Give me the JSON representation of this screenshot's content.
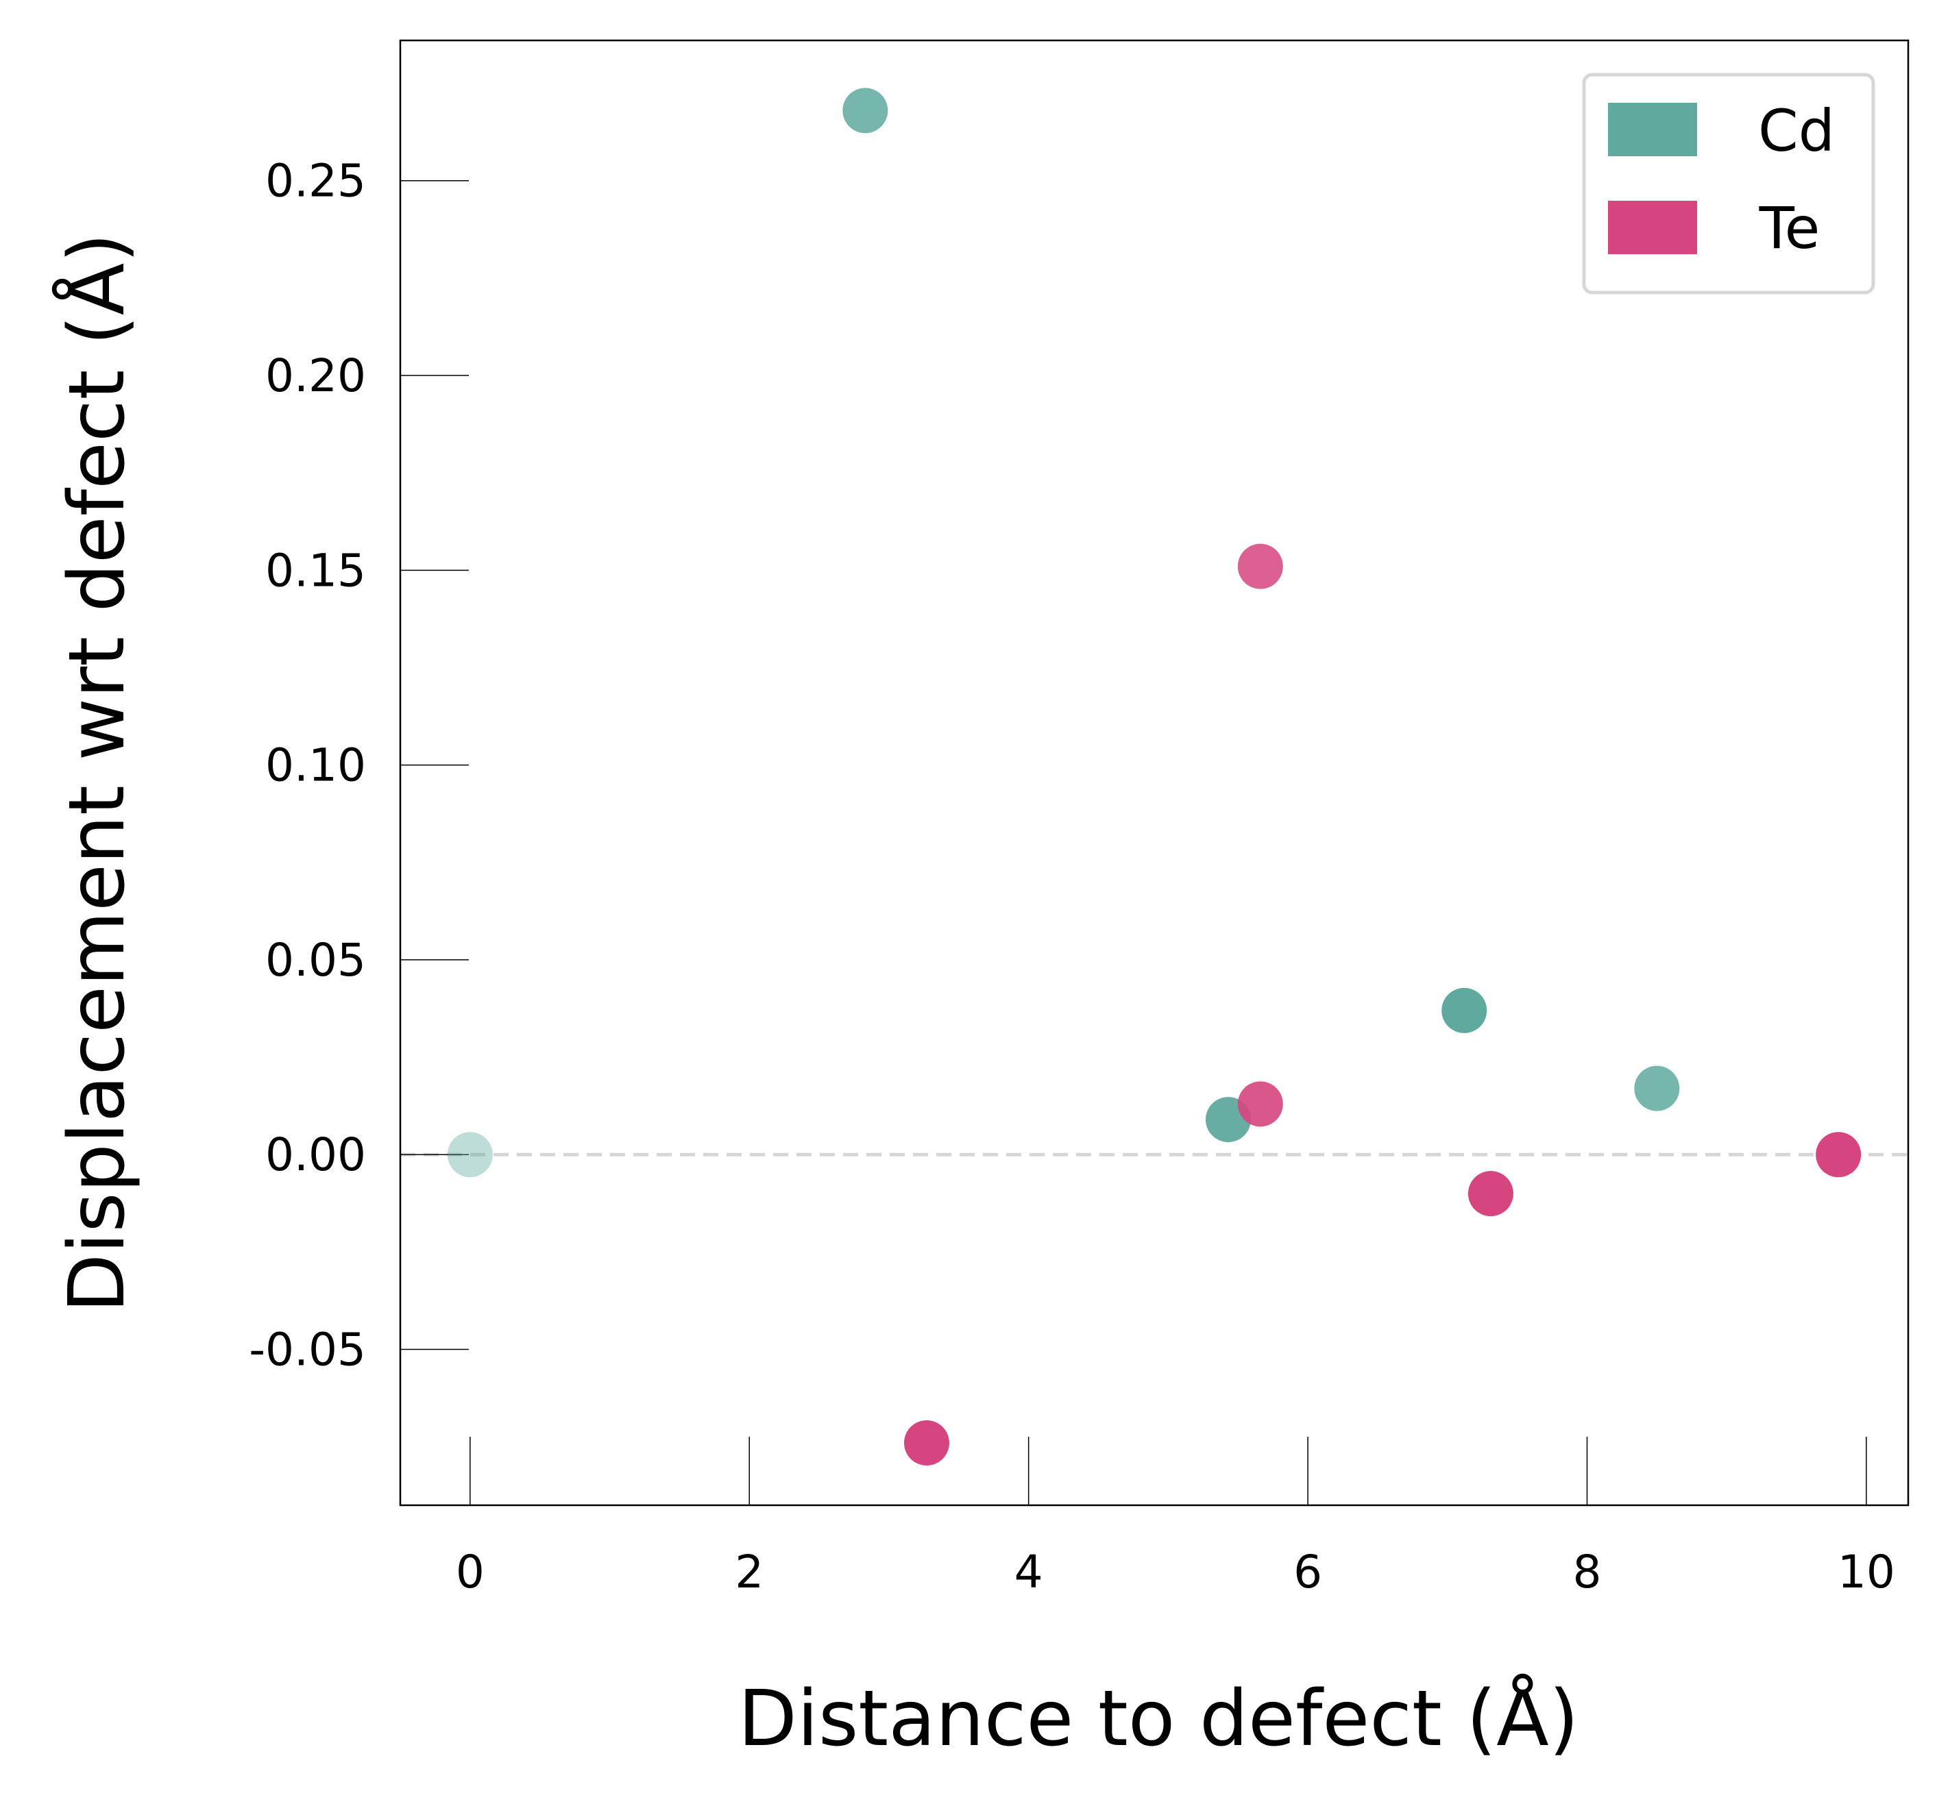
{
  "chart_data": {
    "type": "scatter",
    "title": "",
    "xlabel": "Distance to defect (Å)",
    "ylabel": "Displacement wrt defect (Å)",
    "xlim": [
      -0.5,
      10.3
    ],
    "ylim": [
      -0.09,
      0.286
    ],
    "x_ticks": [
      0,
      2,
      4,
      6,
      8,
      10
    ],
    "x_tick_labels": [
      "0",
      "2",
      "4",
      "6",
      "8",
      "10"
    ],
    "y_ticks": [
      -0.05,
      0.0,
      0.05,
      0.1,
      0.15,
      0.2,
      0.25
    ],
    "y_tick_labels": [
      "-0.05",
      "0.00",
      "0.05",
      "0.10",
      "0.15",
      "0.20",
      "0.25"
    ],
    "grid": false,
    "zero_line": true,
    "legend_position": "top-right",
    "series": [
      {
        "name": "Cd",
        "color": "#5fa99e",
        "points": [
          {
            "x": 0.0,
            "y": 0.0,
            "alpha": 0.4
          },
          {
            "x": 2.83,
            "y": 0.268,
            "alpha": 0.85
          },
          {
            "x": 5.43,
            "y": 0.009,
            "alpha": 0.95
          },
          {
            "x": 7.12,
            "y": 0.037,
            "alpha": 1.0
          },
          {
            "x": 8.5,
            "y": 0.017,
            "alpha": 0.85
          }
        ]
      },
      {
        "name": "Te",
        "color": "#d6457f",
        "points": [
          {
            "x": 3.27,
            "y": -0.074,
            "alpha": 1.0
          },
          {
            "x": 5.66,
            "y": 0.151,
            "alpha": 0.85
          },
          {
            "x": 5.66,
            "y": 0.013,
            "alpha": 0.9
          },
          {
            "x": 7.31,
            "y": -0.01,
            "alpha": 1.0
          },
          {
            "x": 9.8,
            "y": 0.0,
            "alpha": 1.0
          }
        ]
      }
    ]
  }
}
